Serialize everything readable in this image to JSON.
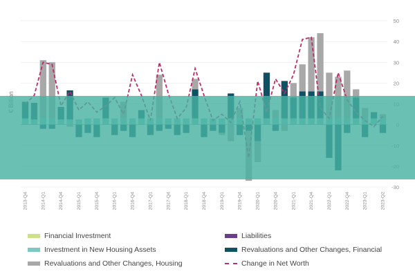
{
  "chart_data": {
    "type": "bar",
    "ylabel": "€ Billion",
    "ylim": [
      -30,
      50
    ],
    "yticks": [
      50,
      40,
      30,
      20,
      10,
      0,
      -10,
      -20,
      -30
    ],
    "grid": true,
    "legend_position": "bottom",
    "categories": [
      "2013-Q4",
      "",
      "2014-Q1",
      "",
      "2014-Q4",
      "",
      "2015-Q1",
      "",
      "2015-Q4",
      "",
      "2016-Q1",
      "",
      "2016-Q4",
      "",
      "2017-Q1",
      "",
      "2017-Q4",
      "",
      "2018-Q1",
      "",
      "2018-Q4",
      "",
      "2019-Q1",
      "",
      "2019-Q4",
      "",
      "2020-Q1",
      "",
      "2020-Q4",
      "",
      "2021-Q1",
      "",
      "2021-Q4",
      "",
      "2022-Q1",
      "",
      "2022-Q4",
      "",
      "2023-Q1",
      "",
      "2023-Q2"
    ],
    "series": [
      {
        "name": "Financial Investment",
        "kind": "bar",
        "color": "#cfe08a",
        "values": [
          0,
          0,
          0,
          0,
          0,
          0,
          0,
          0,
          0,
          0,
          0,
          0,
          0,
          0,
          0,
          0,
          0,
          0,
          0,
          0,
          0,
          0,
          0,
          0,
          0,
          0,
          0,
          0,
          0,
          0,
          0,
          0,
          0,
          0,
          0,
          0,
          0,
          0,
          0,
          0,
          0
        ]
      },
      {
        "name": "Liabilities",
        "kind": "bar",
        "color": "#6a3e8e",
        "values": [
          0,
          0,
          0,
          0,
          0,
          0,
          0,
          0,
          0,
          0,
          0,
          0,
          0,
          0,
          0,
          0,
          0,
          0,
          0,
          0,
          0,
          0,
          0,
          0,
          0,
          0,
          0,
          0,
          0,
          0,
          0,
          0,
          0,
          0,
          0,
          0,
          0,
          0,
          0,
          0,
          0
        ]
      },
      {
        "name": "Investment in New Housing Assets",
        "kind": "bar",
        "color": "#7ec8c0",
        "values": [
          3,
          2.5,
          3,
          3,
          2.5,
          2.5,
          2.5,
          3,
          3,
          3,
          3,
          3,
          3,
          3,
          3,
          3,
          3,
          3,
          3,
          3,
          3,
          3,
          3,
          3,
          3,
          3,
          3,
          3,
          3,
          3,
          3,
          3,
          3,
          3,
          3,
          3,
          3,
          3,
          3,
          3,
          3
        ]
      },
      {
        "name": "Revaluations and Other Changes, Financial",
        "kind": "bar",
        "color": "#0f5163",
        "values": [
          8,
          8,
          -2,
          -2,
          6,
          14,
          -6,
          -4,
          -6,
          10,
          -5,
          -3,
          -6,
          4,
          -5,
          -3,
          -2,
          -5,
          -4,
          14,
          -6,
          -3,
          -4,
          12,
          -5,
          -3,
          -8,
          22,
          -3,
          18,
          10,
          13,
          13,
          13,
          -16,
          -22,
          -4,
          10,
          -6,
          3,
          -4
        ]
      },
      {
        "name": "Revaluations and Other Changes, Housing",
        "kind": "bar",
        "color": "#a8a8a8",
        "values": [
          0,
          0,
          28,
          27,
          0,
          -1,
          0,
          0,
          0,
          0,
          0,
          8,
          0,
          0,
          0,
          21,
          0,
          0,
          0,
          5,
          0,
          0,
          -1,
          -8,
          5,
          -24,
          -10,
          0,
          4,
          -3,
          7,
          13,
          26,
          28,
          22,
          20,
          23,
          4,
          5,
          0,
          2
        ]
      },
      {
        "name": "Change in Net Worth",
        "kind": "line",
        "color": "#c02a6a",
        "values": [
          10,
          14,
          30,
          29,
          9,
          16,
          7,
          11,
          6,
          9,
          13,
          5,
          24,
          14,
          2,
          30,
          15,
          3,
          8,
          27,
          14,
          2,
          5,
          1,
          11,
          -16,
          21,
          6,
          22,
          15,
          24,
          41,
          42,
          8,
          3,
          25,
          12,
          6,
          2,
          -1,
          4
        ]
      }
    ]
  }
}
